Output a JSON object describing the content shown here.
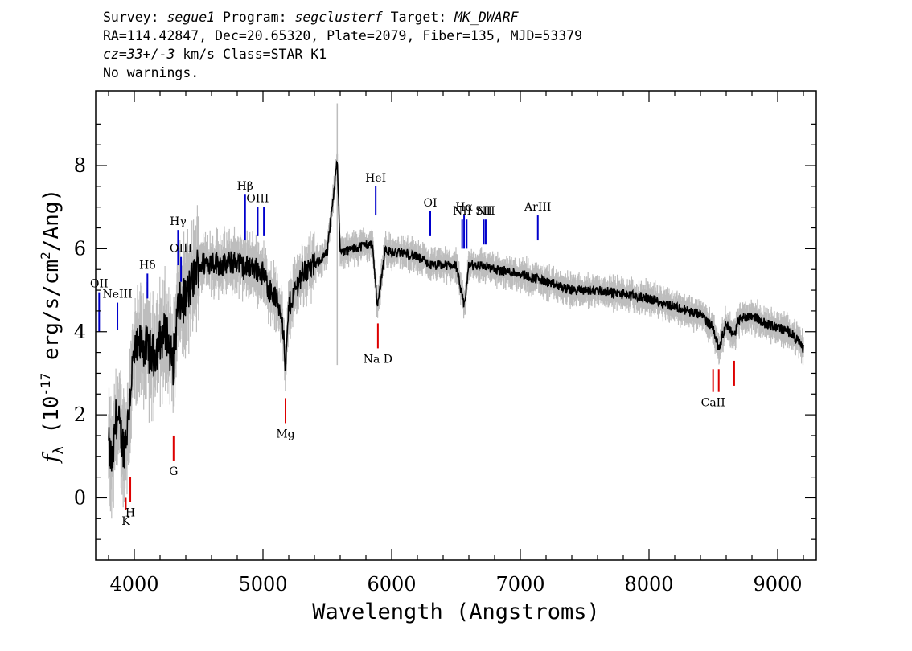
{
  "header": {
    "survey_prefix": "Survey: ",
    "survey": "segue1",
    "program_prefix": " Program: ",
    "program": "segclusterf",
    "target_prefix": " Target: ",
    "target": "MK_DWARF",
    "line2": "RA=114.42847, Dec=20.65320, Plate=2079, Fiber=135, MJD=53379",
    "cz": "cz=33+/-3",
    "cz_suffix": " km/s Class=STAR K1",
    "line4": "No warnings."
  },
  "chart_data": {
    "type": "line",
    "xlabel": "Wavelength (Angstroms)",
    "ylabel": "fλ (10^-17 erg/s/cm^2/Ang)",
    "xlim": [
      3700,
      9300
    ],
    "ylim": [
      -1.5,
      9.8
    ],
    "xticks": [
      4000,
      5000,
      6000,
      7000,
      8000,
      9000
    ],
    "yticks": [
      0,
      2,
      4,
      6,
      8
    ],
    "colors": {
      "flux": "#000000",
      "error": "#bdbdbd",
      "emission": "#0000cc",
      "absorption": "#dd0000"
    },
    "series": [
      {
        "role": "flux",
        "x": [
          3800,
          3830,
          3860,
          3890,
          3920,
          3950,
          3980,
          4000,
          4050,
          4100,
          4150,
          4200,
          4250,
          4300,
          4340,
          4400,
          4450,
          4500,
          4600,
          4700,
          4800,
          4861,
          4900,
          5000,
          5050,
          5100,
          5150,
          5175,
          5200,
          5250,
          5300,
          5400,
          5500,
          5577,
          5600,
          5700,
          5800,
          5850,
          5890,
          5950,
          6000,
          6100,
          6200,
          6300,
          6400,
          6500,
          6563,
          6600,
          6700,
          6800,
          7000,
          7200,
          7400,
          7600,
          7800,
          8000,
          8200,
          8400,
          8500,
          8540,
          8600,
          8662,
          8700,
          8800,
          8900,
          9000,
          9100,
          9200
        ],
        "y": [
          1.2,
          0.8,
          2.0,
          1.6,
          1.2,
          1.8,
          3.0,
          3.4,
          3.7,
          3.6,
          3.4,
          3.8,
          4.0,
          3.2,
          4.6,
          4.8,
          5.2,
          5.6,
          5.7,
          5.6,
          5.7,
          5.5,
          5.6,
          5.4,
          5.0,
          4.8,
          4.4,
          3.0,
          4.6,
          5.0,
          5.4,
          5.6,
          5.9,
          8.2,
          5.9,
          6.0,
          6.1,
          6.1,
          4.6,
          6.0,
          5.9,
          5.9,
          5.8,
          5.6,
          5.6,
          5.6,
          4.6,
          5.6,
          5.6,
          5.5,
          5.4,
          5.2,
          5.0,
          5.0,
          4.9,
          4.8,
          4.6,
          4.4,
          4.1,
          3.6,
          4.2,
          3.9,
          4.3,
          4.4,
          4.2,
          4.1,
          4.0,
          3.6
        ]
      }
    ],
    "emission_lines": [
      {
        "label": "OII",
        "wave": 3727,
        "y_top": 4.95,
        "y_bottom": 4.0
      },
      {
        "label": "NeIII",
        "wave": 3869,
        "y_top": 4.7,
        "y_bottom": 4.05
      },
      {
        "label": "Hδ",
        "wave": 4102,
        "y_top": 5.4,
        "y_bottom": 4.8
      },
      {
        "label": "Hγ",
        "wave": 4340,
        "y_top": 6.45,
        "y_bottom": 5.6
      },
      {
        "label": "OIII",
        "wave": 4363,
        "y_top": 5.8,
        "y_bottom": 5.2
      },
      {
        "label": "Hβ",
        "wave": 4861,
        "y_top": 7.3,
        "y_bottom": 6.2
      },
      {
        "label": "OIII",
        "wave": 4959,
        "y_top": 7.0,
        "y_bottom": 6.3
      },
      {
        "label": "",
        "wave": 5007,
        "y_top": 7.0,
        "y_bottom": 6.3
      },
      {
        "label": "HeI",
        "wave": 5876,
        "y_top": 7.5,
        "y_bottom": 6.8
      },
      {
        "label": "OI",
        "wave": 6300,
        "y_top": 6.9,
        "y_bottom": 6.3
      },
      {
        "label": "NII",
        "wave": 6548,
        "y_top": 6.7,
        "y_bottom": 6.0
      },
      {
        "label": "Hα",
        "wave": 6563,
        "y_top": 6.8,
        "y_bottom": 6.0
      },
      {
        "label": "",
        "wave": 6583,
        "y_top": 6.7,
        "y_bottom": 6.0
      },
      {
        "label": "SII",
        "wave": 6716,
        "y_top": 6.7,
        "y_bottom": 6.1
      },
      {
        "label": "NII",
        "wave": 6731,
        "y_top": 6.7,
        "y_bottom": 6.1
      },
      {
        "label": "ArIII",
        "wave": 7136,
        "y_top": 6.8,
        "y_bottom": 6.2
      }
    ],
    "absorption_lines": [
      {
        "label": "K",
        "wave": 3934,
        "y_top": 0.0,
        "y_bottom": -0.3
      },
      {
        "label": "H",
        "wave": 3969,
        "y_top": 0.5,
        "y_bottom": -0.1
      },
      {
        "label": "G",
        "wave": 4305,
        "y_top": 1.5,
        "y_bottom": 0.9
      },
      {
        "label": "Mg",
        "wave": 5175,
        "y_top": 2.4,
        "y_bottom": 1.8
      },
      {
        "label": "Na D",
        "wave": 5893,
        "y_top": 4.2,
        "y_bottom": 3.6
      },
      {
        "label": "CaII",
        "wave": 8498,
        "y_top": 3.1,
        "y_bottom": 2.55
      },
      {
        "label": "",
        "wave": 8542,
        "y_top": 3.1,
        "y_bottom": 2.55
      },
      {
        "label": "",
        "wave": 8662,
        "y_top": 3.3,
        "y_bottom": 2.7
      }
    ]
  }
}
